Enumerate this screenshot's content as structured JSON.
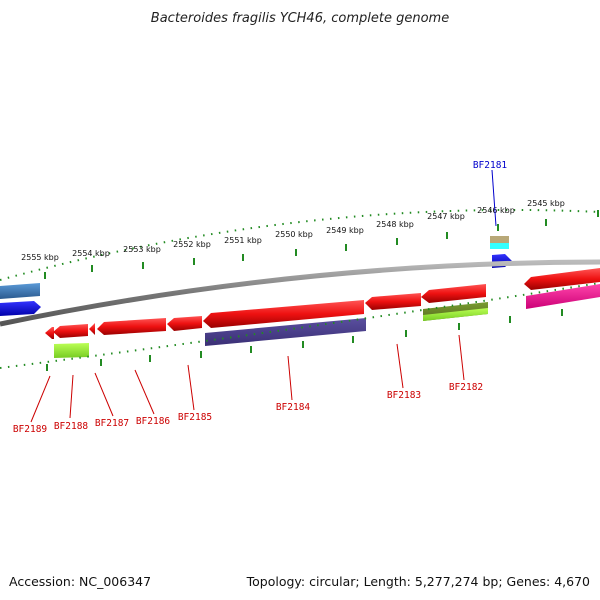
{
  "title": "Bacteroides fragilis YCH46, complete genome",
  "footer": {
    "accession": "Accession: NC_006347",
    "summary": "Topology: circular; Length: 5,277,274 bp; Genes: 4,670"
  },
  "kbp_labels": [
    "2555 kbp",
    "2554 kbp",
    "2553 kbp",
    "2552 kbp",
    "2551 kbp",
    "2550 kbp",
    "2549 kbp",
    "2548 kbp",
    "2547 kbp",
    "2546 kbp",
    "2545 kbp"
  ],
  "gene_labels": {
    "bf2181": "BF2181",
    "bf2182": "BF2182",
    "bf2183": "BF2183",
    "bf2184": "BF2184",
    "bf2185": "BF2185",
    "bf2186": "BF2186",
    "bf2187": "BF2187",
    "bf2188": "BF2188",
    "bf2189": "BF2189"
  },
  "colors": {
    "backbone": "#888888",
    "tick_green": "#228b22",
    "gene_red": "#ee1111",
    "protein_purple": "#4b3f8a",
    "domain_lime": "#99ee33",
    "domain_olive": "#6b8e23",
    "magenta": "#ee1188",
    "blue": "#1010ee",
    "steel_blue": "#3a7abf",
    "cyan": "#33ffff",
    "tan": "#b8a878"
  }
}
